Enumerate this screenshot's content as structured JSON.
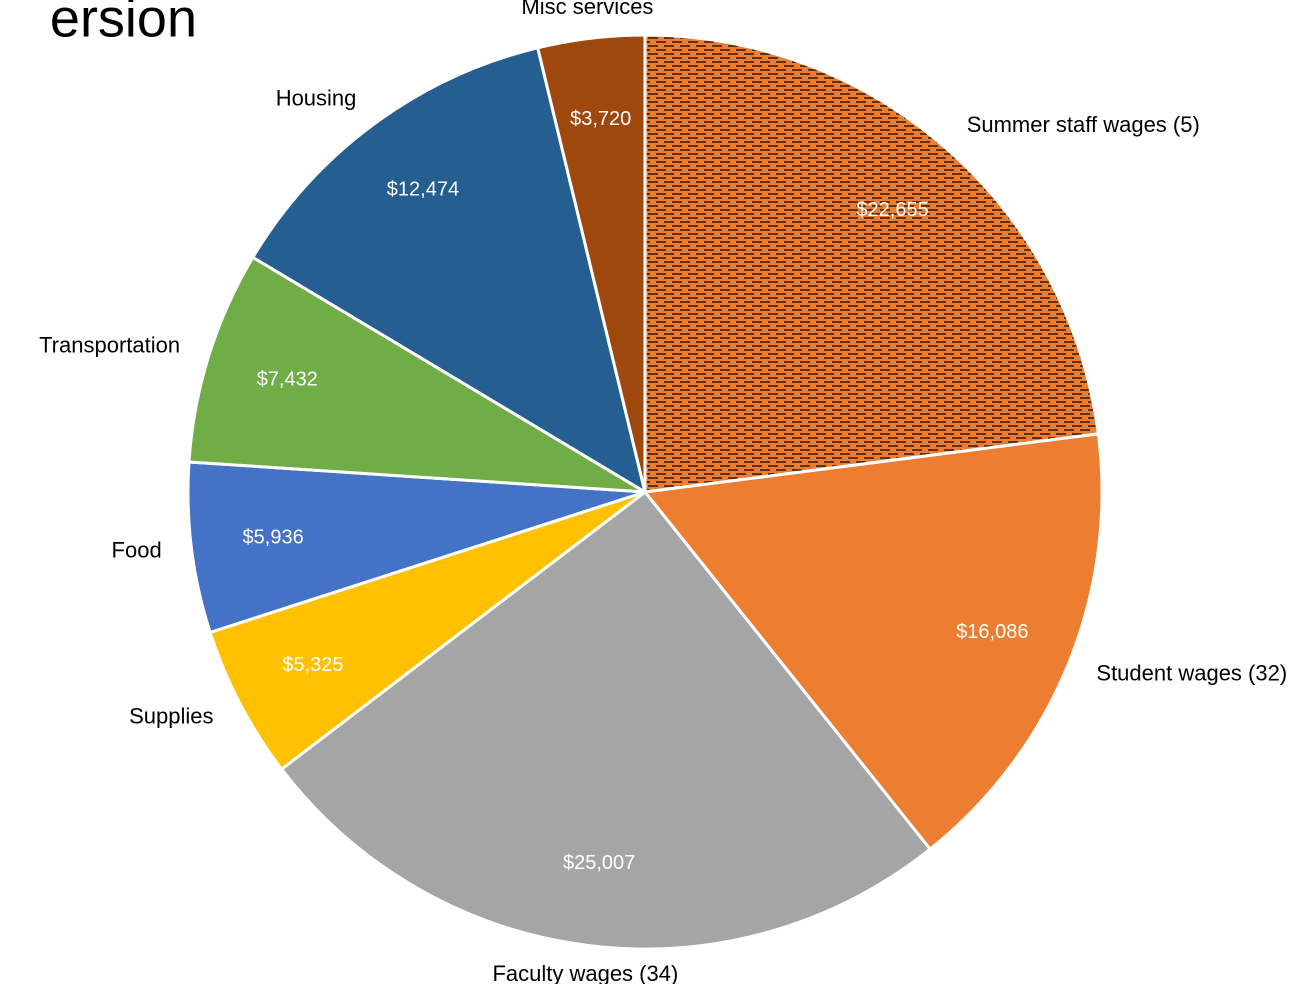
{
  "chart_data": {
    "type": "pie",
    "title": "ersion",
    "categories": [
      "Summer staff wages (5)",
      "Student wages (32)",
      "Faculty wages (34)",
      "Supplies",
      "Food",
      "Transportation",
      "Housing",
      "Misc services"
    ],
    "values": [
      22655,
      16086,
      25007,
      5325,
      5936,
      7432,
      12474,
      3720
    ],
    "value_labels": [
      "$22,655",
      "$16,086",
      "$25,007",
      "$5,325",
      "$5,936",
      "$7,432",
      "$12,474",
      "$3,720"
    ],
    "colors": [
      "#ED7D31",
      "#ED7D31",
      "#A5A5A5",
      "#FFC000",
      "#4472C4",
      "#70AD47",
      "#255E91",
      "#9E480E"
    ],
    "patterns": [
      "dashed",
      null,
      null,
      null,
      null,
      null,
      null,
      null
    ]
  }
}
